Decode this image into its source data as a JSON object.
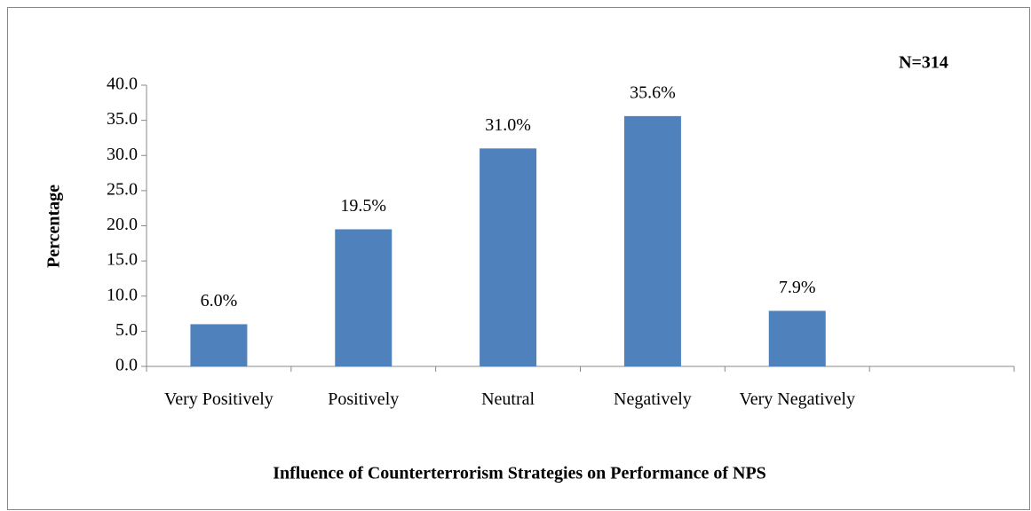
{
  "chart_data": {
    "type": "bar",
    "title": "Influence of Counterterrorism Strategies on Performance of NPS",
    "ylabel": "Percentage",
    "annotation": "N=314",
    "categories": [
      "Very Positively",
      "Positively",
      "Neutral",
      "Negatively",
      "Very Negatively",
      null
    ],
    "values": [
      6.0,
      19.5,
      31.0,
      35.6,
      7.9,
      null
    ],
    "value_labels": [
      "6.0%",
      "19.5%",
      "31.0%",
      "35.6%",
      "7.9%",
      null
    ],
    "color": "#4f81bd",
    "ylim": [
      0,
      40
    ],
    "yticks": [
      {
        "value": 0,
        "label": "0.0"
      },
      {
        "value": 5,
        "label": "5.0"
      },
      {
        "value": 10,
        "label": "10.0"
      },
      {
        "value": 15,
        "label": "15.0"
      },
      {
        "value": 20,
        "label": "20.0"
      },
      {
        "value": 25,
        "label": "25.0"
      },
      {
        "value": 30,
        "label": "30.0"
      },
      {
        "value": 35,
        "label": "35.0"
      },
      {
        "value": 40,
        "label": "40.0"
      }
    ],
    "grid": false
  }
}
